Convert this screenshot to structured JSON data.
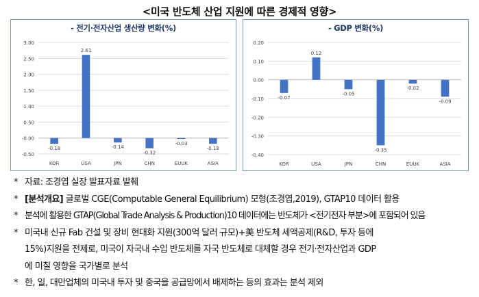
{
  "title": "<미국 반도체 산업 지원에 따른 경제적 영향>",
  "chart_data": [
    {
      "type": "bar",
      "title": "- 전기·전자산업 생산량 변화(%)",
      "categories": [
        "KOR",
        "USA",
        "JPN",
        "CHN",
        "EUUK",
        "ASIA"
      ],
      "values": [
        -0.18,
        2.61,
        -0.14,
        -0.32,
        -0.03,
        -0.18
      ],
      "value_labels": [
        "-0.18",
        "2.61",
        "-0.14",
        "-0.32",
        "-0.03",
        "-0.18"
      ],
      "ylim": [
        -0.5,
        3.0
      ],
      "yticks": [
        "-0.50",
        "-0.00",
        "0.50",
        "1.00",
        "1.50",
        "2.00",
        "2.50",
        "3.00"
      ],
      "ytick_values": [
        -0.5,
        0,
        0.5,
        1.0,
        1.5,
        2.0,
        2.5,
        3.0
      ],
      "grid": true,
      "bar_color": "#4472c4"
    },
    {
      "type": "bar",
      "title": "- GDP 변화(%)",
      "categories": [
        "KOR",
        "USA",
        "JPN",
        "CHN",
        "EUUK",
        "ASIA"
      ],
      "values": [
        -0.07,
        0.12,
        -0.05,
        -0.35,
        -0.02,
        -0.09
      ],
      "value_labels": [
        "-0.07",
        "0.12",
        "-0.05",
        "-0.35",
        "-0.02",
        "-0.09"
      ],
      "ylim": [
        -0.4,
        0.2
      ],
      "yticks": [
        "-0.40",
        "-0.30",
        "-0.20",
        "-0.10",
        "0.00",
        "0.10",
        "0.20"
      ],
      "ytick_values": [
        -0.4,
        -0.3,
        -0.2,
        -0.1,
        0,
        0.1,
        0.2
      ],
      "grid": true,
      "bar_color": "#4472c4"
    }
  ],
  "notes": [
    {
      "bullet": "*",
      "lines": [
        "자료: 조경엽 실장 발표자료 발췌"
      ],
      "bold_prefix": ""
    },
    {
      "bullet": "*",
      "bold_prefix": "[분석개요]",
      "lines": [
        " 글로벌 CGE(Computable General Equilibrium) 모형(조경엽,2019), GTAP10 데이터 활용"
      ]
    },
    {
      "bullet": "*",
      "bold_prefix": "",
      "lines": [
        "분석에 활용한 GTAP(Global Trade Analysis & Production)10 데이터에는 반도체가 <전기전자 부분>에 포함되어 있음"
      ]
    },
    {
      "bullet": "*",
      "bold_prefix": "",
      "lines": [
        "미국내 신규 Fab 건설 및 장비 현대화 지원(300억 달러 규모)+美 반도체 세액공제(R&D, 투자 등에",
        "15%)지원을 전제로, 미국이 자국내 수입 반도체를 자국 반도체로 대체할 경우 전기·전자산업과 GDP",
        "에 미칠 영향을 국가별로 분석"
      ]
    },
    {
      "bullet": "*",
      "bold_prefix": "",
      "lines": [
        "한, 일, 대만업체의 미국내 투자 및 중국을 공급망에서 배제하는 등의 효과는 분석 제외"
      ]
    }
  ]
}
